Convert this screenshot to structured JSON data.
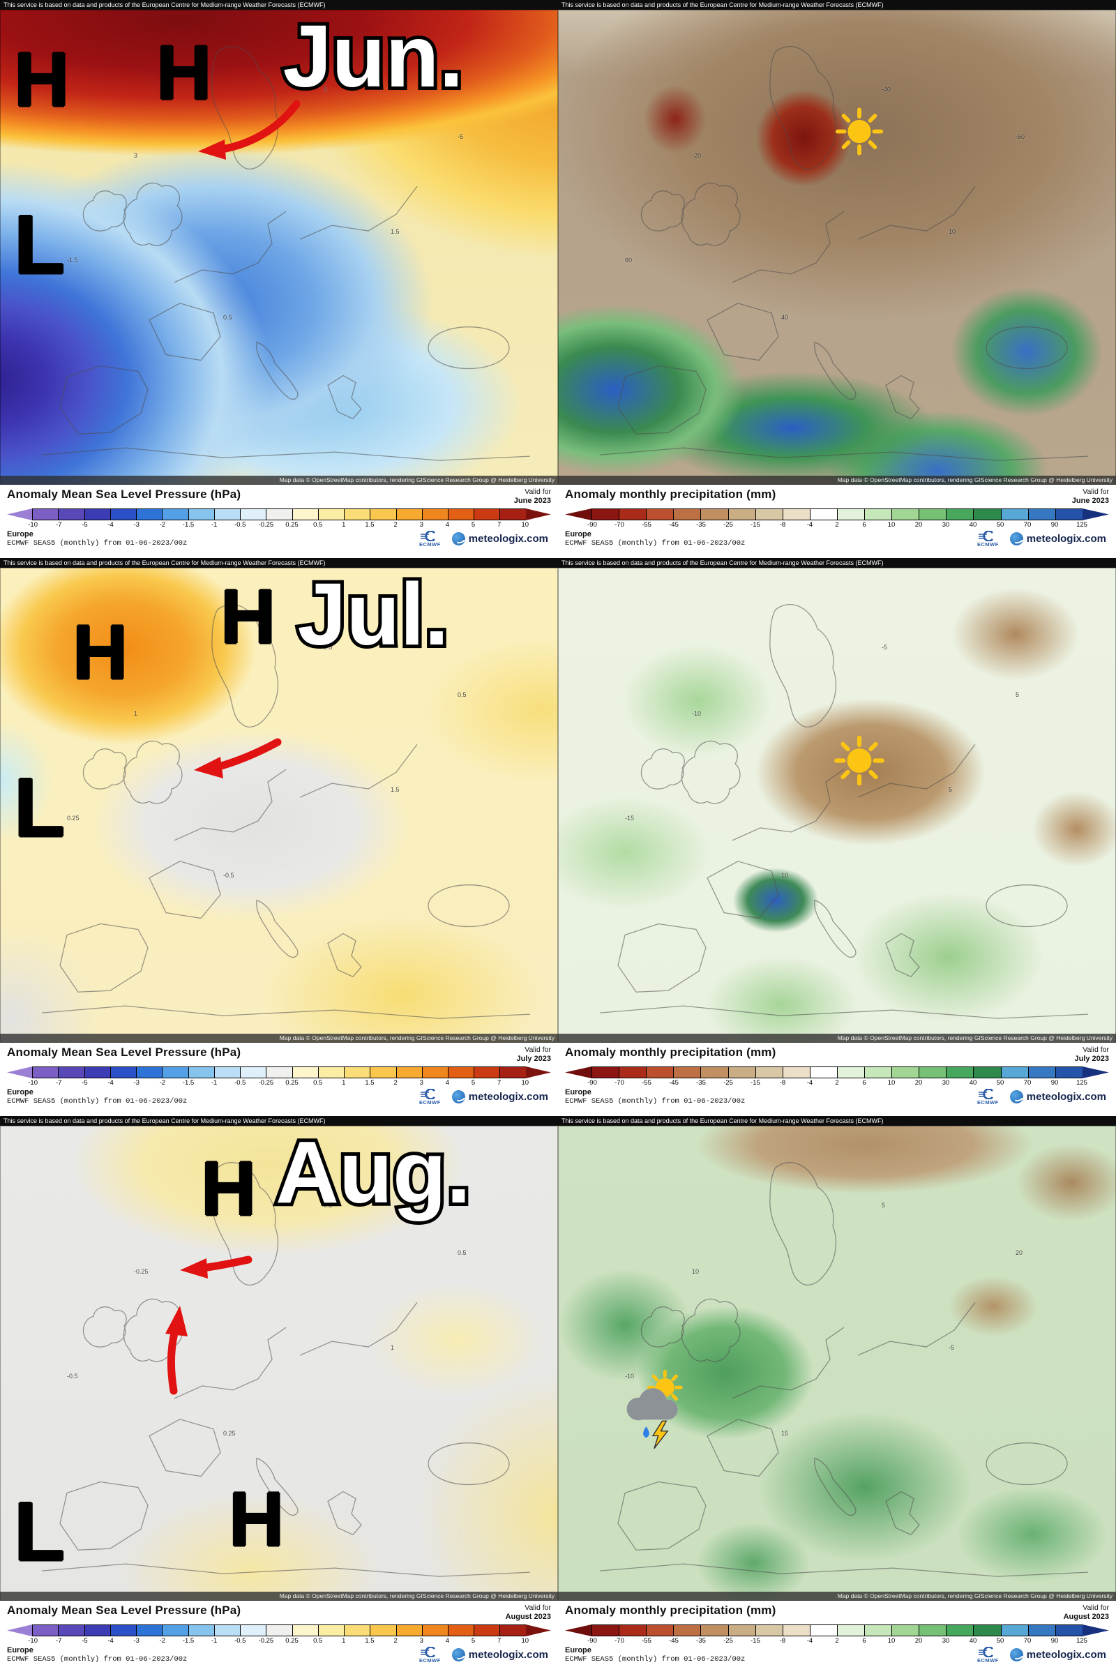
{
  "service_bar_text": "This service is based on data and products of the European Centre for Medium-range Weather Forecasts (ECMWF)",
  "osm_attribution": "Map data © OpenStreetMap contributors, rendering GIScience Research Group @ Heidelberg University",
  "labels": {
    "valid_for": "Valid for"
  },
  "footer": {
    "region": "Europe",
    "model_line": "ECMWF SEAS5 (monthly) from 01-06-2023/00z",
    "ecmwf_label": "ECMWF",
    "brand": "meteologix.com"
  },
  "pressure_panel": {
    "title": "Anomaly Mean Sea Level Pressure (hPa)",
    "scale_labels": [
      "-10",
      "-7",
      "-5",
      "-4",
      "-3",
      "-2",
      "-1.5",
      "-1",
      "-0.5",
      "-0.25",
      "0.25",
      "0.5",
      "1",
      "1.5",
      "2",
      "3",
      "4",
      "5",
      "7",
      "10"
    ],
    "scale_colors": [
      "#9b7fd4",
      "#7b5fc4",
      "#5948b8",
      "#3c3cb4",
      "#2b50c8",
      "#2e74d8",
      "#53a0e6",
      "#86c4ee",
      "#b9def5",
      "#e0f0fa",
      "#f0f0ee",
      "#fdf5cc",
      "#fceda4",
      "#fbdd78",
      "#f9c64e",
      "#f7a930",
      "#f0861e",
      "#e35f14",
      "#cb3a12",
      "#a62014",
      "#7c120e"
    ]
  },
  "precip_panel": {
    "title": "Anomaly monthly precipitation (mm)",
    "scale_labels": [
      "-90",
      "-70",
      "-55",
      "-45",
      "-35",
      "-25",
      "-15",
      "-8",
      "-4",
      "2",
      "6",
      "10",
      "20",
      "30",
      "40",
      "50",
      "70",
      "90",
      "125"
    ],
    "scale_colors": [
      "#6f0e0c",
      "#8c1612",
      "#aa2b1a",
      "#bb4f2e",
      "#bd7044",
      "#c08f62",
      "#c9ad84",
      "#d9c8a6",
      "#ecdfc8",
      "#ffffff",
      "#e3f2da",
      "#c6e7ba",
      "#a2d694",
      "#76c175",
      "#47a75c",
      "#2e8a4a",
      "#57a7d7",
      "#3678c1",
      "#2453a9",
      "#17317f"
    ]
  },
  "months": [
    {
      "label": "Jun.",
      "valid_for": "June 2023",
      "pressure_markers": [
        {
          "letter": "H"
        },
        {
          "letter": "H"
        },
        {
          "letter": "L"
        }
      ],
      "pressure_contours": [
        "5",
        "3",
        "1.5",
        "0.5",
        "-1.5",
        "-5"
      ],
      "precip_contours": [
        "-40",
        "-20",
        "10",
        "40",
        "60",
        "-60"
      ],
      "precip_icon": "sun"
    },
    {
      "label": "Jul.",
      "valid_for": "July 2023",
      "pressure_markers": [
        {
          "letter": "H"
        },
        {
          "letter": "H"
        },
        {
          "letter": "L"
        }
      ],
      "pressure_contours": [
        "0.5",
        "1",
        "1.5",
        "-0.5",
        "0.25",
        "0.5"
      ],
      "precip_contours": [
        "-5",
        "-10",
        "5",
        "10",
        "-15",
        "5"
      ],
      "precip_icon": "sun"
    },
    {
      "label": "Aug.",
      "valid_for": "August 2023",
      "pressure_markers": [
        {
          "letter": "H"
        },
        {
          "letter": "H"
        },
        {
          "letter": "L"
        }
      ],
      "pressure_contours": [
        "0.5",
        "-0.25",
        "1",
        "0.25",
        "-0.5",
        "0.5"
      ],
      "precip_contours": [
        "5",
        "10",
        "-5",
        "15",
        "-10",
        "20"
      ],
      "precip_icon": "sun-cloud-storm"
    }
  ],
  "icon_colors": {
    "arrow": "#e11212",
    "sun": "#fdc513",
    "cloud": "#8d9297",
    "rain_drop": "#2f7fe8",
    "marker": "#000000"
  }
}
